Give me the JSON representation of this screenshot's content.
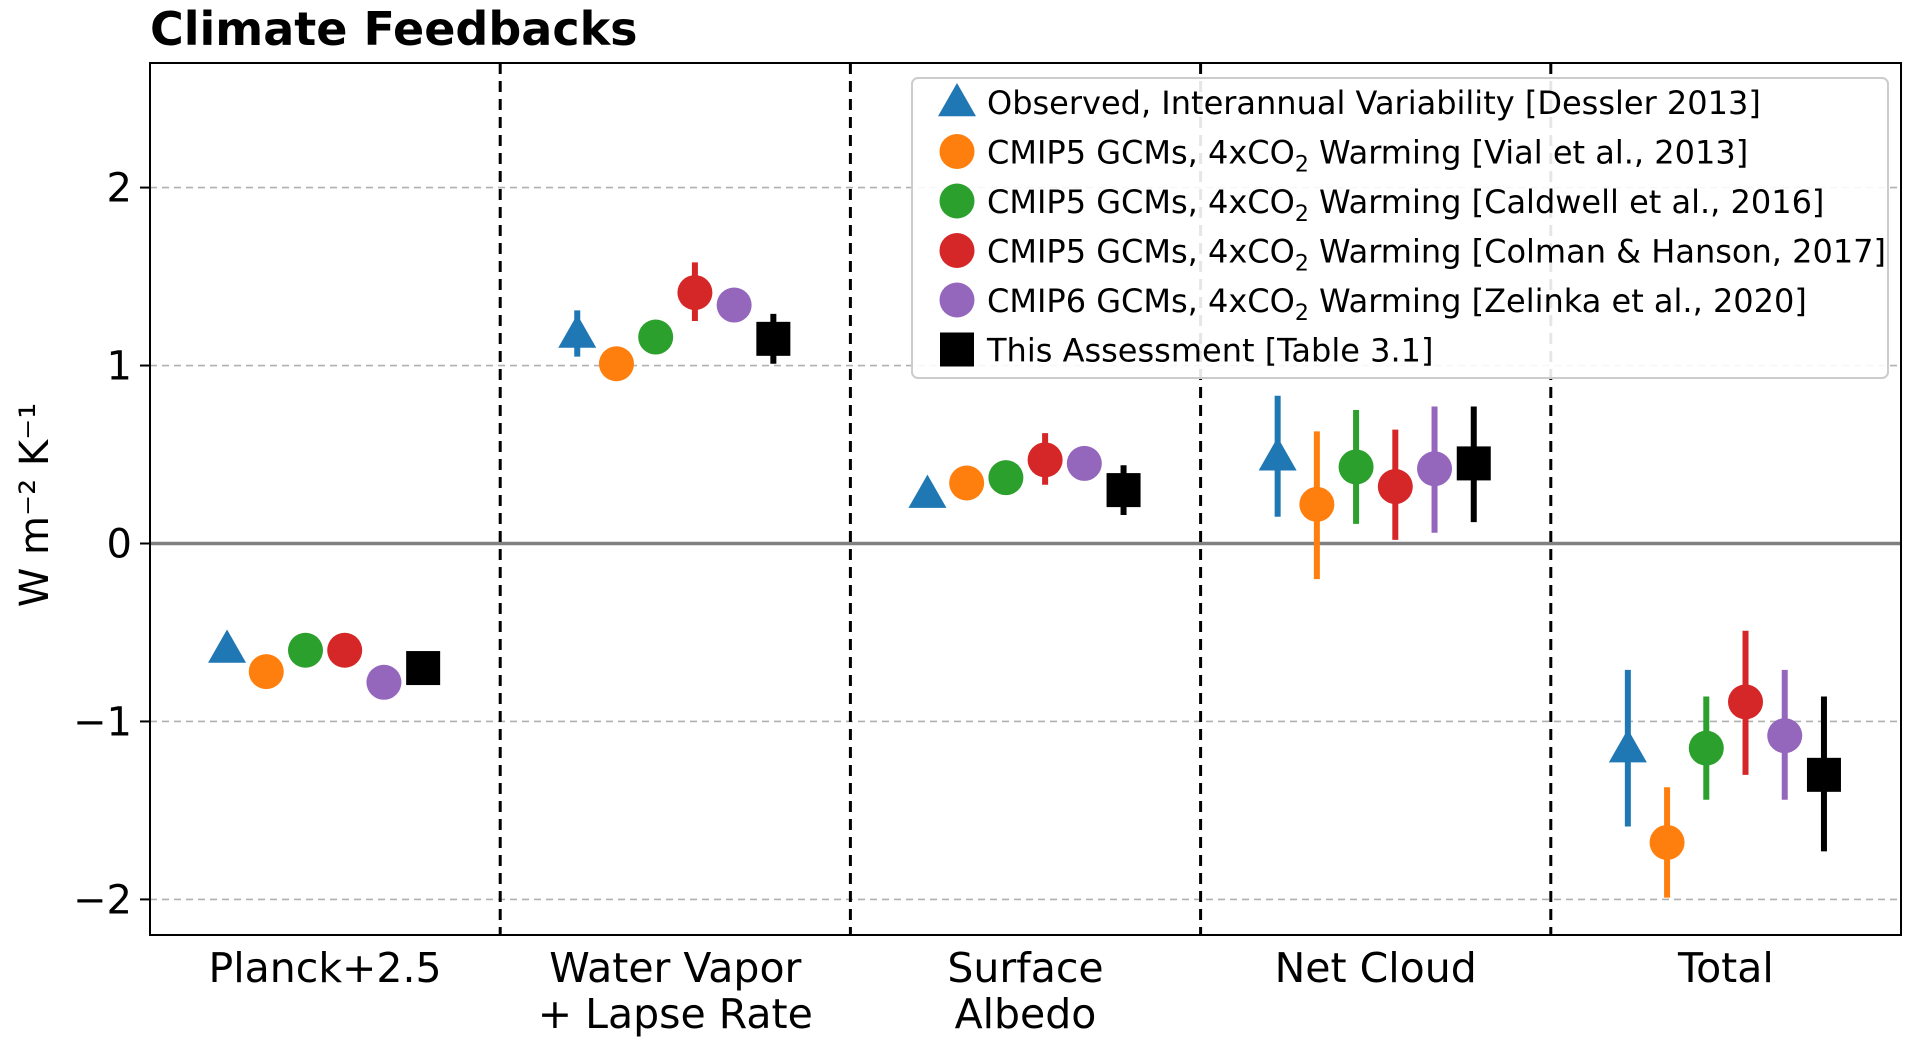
{
  "chart_data": {
    "type": "scatter",
    "title": "Climate Feedbacks",
    "ylabel": "W m⁻² K⁻¹",
    "xlabel": "",
    "ylim": [
      -2.2,
      2.7
    ],
    "yticks": [
      2,
      1,
      0,
      -1,
      -2
    ],
    "ytick_labels": [
      "2",
      "1",
      "0",
      "−1",
      "−2"
    ],
    "grid": "horizontal dashed",
    "legend_position": "top-right",
    "categories": [
      [
        "Planck+2.5"
      ],
      [
        "Water Vapor",
        "+ Lapse Rate"
      ],
      [
        "Surface",
        "Albedo"
      ],
      [
        "Net Cloud"
      ],
      [
        "Total"
      ]
    ],
    "series": [
      {
        "name": "Observed, Interannual Variability [Dessler 2013]",
        "name_parts": [
          "Observed, Interannual Variability [Dessler 2013]"
        ],
        "marker": "triangle",
        "color": "#1f77b4",
        "values": [
          -0.59,
          1.18,
          0.28,
          0.49,
          -1.15
        ],
        "err_low": [
          null,
          1.05,
          null,
          0.15,
          -1.59
        ],
        "err_high": [
          null,
          1.31,
          null,
          0.83,
          -0.71
        ]
      },
      {
        "name": "CMIP5 GCMs, 4xCO2 Warming [Vial et al., 2013]",
        "name_parts": [
          "CMIP5 GCMs, 4xCO",
          "2",
          " Warming [Vial et al., 2013]"
        ],
        "marker": "circle",
        "color": "#ff7f0e",
        "values": [
          -0.72,
          1.01,
          0.34,
          0.22,
          -1.68
        ],
        "err_low": [
          null,
          0.92,
          null,
          -0.2,
          -1.99
        ],
        "err_high": [
          null,
          1.1,
          null,
          0.63,
          -1.37
        ]
      },
      {
        "name": "CMIP5 GCMs, 4xCO2 Warming [Caldwell et al., 2016]",
        "name_parts": [
          "CMIP5 GCMs, 4xCO",
          "2",
          " Warming [Caldwell et al., 2016]"
        ],
        "marker": "circle",
        "color": "#2ca02c",
        "values": [
          -0.6,
          1.16,
          0.37,
          0.43,
          -1.15
        ],
        "err_low": [
          null,
          null,
          null,
          0.11,
          -1.44
        ],
        "err_high": [
          null,
          null,
          null,
          0.75,
          -0.86
        ]
      },
      {
        "name": "CMIP5 GCMs, 4xCO2 Warming [Colman & Hanson, 2017]",
        "name_parts": [
          "CMIP5 GCMs, 4xCO",
          "2",
          " Warming [Colman & Hanson, 2017]"
        ],
        "marker": "circle",
        "color": "#d62728",
        "values": [
          -0.6,
          1.41,
          0.47,
          0.32,
          -0.89
        ],
        "err_low": [
          null,
          1.25,
          0.33,
          0.02,
          -1.3
        ],
        "err_high": [
          null,
          1.58,
          0.62,
          0.64,
          -0.49
        ]
      },
      {
        "name": "CMIP6 GCMs, 4xCO2 Warming [Zelinka et al., 2020]",
        "name_parts": [
          "CMIP6 GCMs, 4xCO",
          "2",
          " Warming [Zelinka et al., 2020]"
        ],
        "marker": "circle",
        "color": "#9467bd",
        "values": [
          -0.78,
          1.34,
          0.45,
          0.42,
          -1.08
        ],
        "err_low": [
          null,
          null,
          null,
          0.06,
          -1.44
        ],
        "err_high": [
          null,
          null,
          null,
          0.77,
          -0.71
        ]
      },
      {
        "name": "This Assessment [Table 3.1]",
        "name_parts": [
          "This Assessment [Table 3.1]"
        ],
        "marker": "square",
        "color": "#000000",
        "values": [
          -0.7,
          1.15,
          0.3,
          0.45,
          -1.3
        ],
        "err_low": [
          -0.78,
          1.01,
          0.16,
          0.12,
          -1.73
        ],
        "err_high": [
          -0.62,
          1.29,
          0.44,
          0.77,
          -0.86
        ]
      }
    ]
  }
}
